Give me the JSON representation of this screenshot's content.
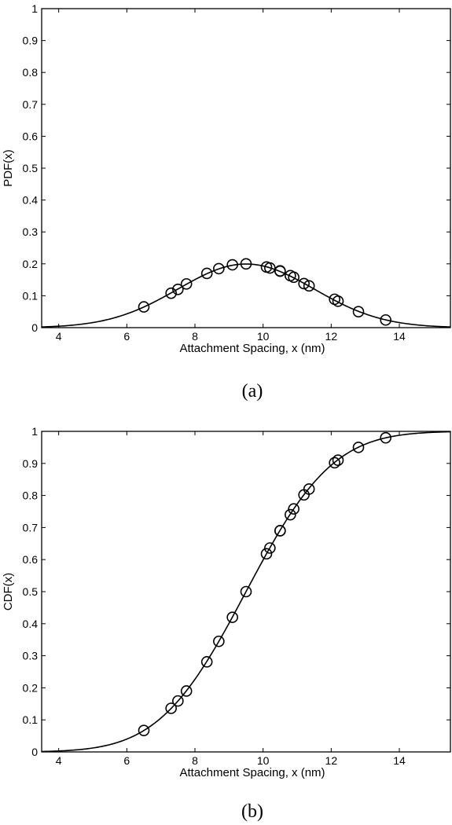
{
  "chart_data": [
    {
      "type": "line",
      "panel_label": "(a)",
      "xlabel": "Attachment Spacing, x (nm)",
      "ylabel": "PDF(x)",
      "xlim": [
        3.5,
        15.5
      ],
      "ylim": [
        0,
        1
      ],
      "xticks": [
        4,
        6,
        8,
        10,
        12,
        14
      ],
      "yticks": [
        0,
        0.1,
        0.2,
        0.3,
        0.4,
        0.5,
        0.6,
        0.7,
        0.8,
        0.9,
        1
      ],
      "ytick_labels": [
        "0",
        "0.1",
        "0.2",
        "0.3",
        "0.4",
        "0.5",
        "0.6",
        "0.7",
        "0.8",
        "0.9",
        "1"
      ],
      "grid": false,
      "legend": "none",
      "series": [
        {
          "style": "solid-line",
          "distribution": "normal",
          "mean": 9.5,
          "std": 2.0
        },
        {
          "style": "open-circle-markers",
          "points": [
            [
              6.5,
              0.065
            ],
            [
              7.3,
              0.108
            ],
            [
              7.5,
              0.12
            ],
            [
              7.75,
              0.137
            ],
            [
              8.35,
              0.17
            ],
            [
              8.7,
              0.185
            ],
            [
              9.1,
              0.197
            ],
            [
              9.5,
              0.2
            ],
            [
              10.1,
              0.19
            ],
            [
              10.2,
              0.187
            ],
            [
              10.5,
              0.178
            ],
            [
              10.5,
              0.177
            ],
            [
              10.8,
              0.163
            ],
            [
              10.9,
              0.158
            ],
            [
              11.2,
              0.138
            ],
            [
              11.35,
              0.131
            ],
            [
              12.1,
              0.089
            ],
            [
              12.2,
              0.083
            ],
            [
              12.8,
              0.05
            ],
            [
              13.6,
              0.024
            ]
          ]
        }
      ]
    },
    {
      "type": "line",
      "panel_label": "(b)",
      "xlabel": "Attachment Spacing, x (nm)",
      "ylabel": "CDF(x)",
      "xlim": [
        3.5,
        15.5
      ],
      "ylim": [
        0,
        1
      ],
      "xticks": [
        4,
        6,
        8,
        10,
        12,
        14
      ],
      "yticks": [
        0,
        0.1,
        0.2,
        0.3,
        0.4,
        0.5,
        0.6,
        0.7,
        0.8,
        0.9,
        1
      ],
      "ytick_labels": [
        "0",
        "0.1",
        "0.2",
        "0.3",
        "0.4",
        "0.5",
        "0.6",
        "0.7",
        "0.8",
        "0.9",
        "1"
      ],
      "grid": false,
      "legend": "none",
      "series": [
        {
          "style": "solid-line",
          "distribution": "normal-cdf",
          "mean": 9.5,
          "std": 2.0
        },
        {
          "style": "open-circle-markers",
          "points": [
            [
              6.5,
              0.067
            ],
            [
              7.3,
              0.136
            ],
            [
              7.5,
              0.159
            ],
            [
              7.75,
              0.19
            ],
            [
              8.35,
              0.281
            ],
            [
              8.7,
              0.345
            ],
            [
              9.1,
              0.42
            ],
            [
              9.5,
              0.5
            ],
            [
              10.1,
              0.618
            ],
            [
              10.2,
              0.636
            ],
            [
              10.5,
              0.69
            ],
            [
              10.5,
              0.69
            ],
            [
              10.8,
              0.74
            ],
            [
              10.9,
              0.758
            ],
            [
              11.2,
              0.802
            ],
            [
              11.35,
              0.82
            ],
            [
              12.1,
              0.902
            ],
            [
              12.2,
              0.91
            ],
            [
              12.8,
              0.95
            ],
            [
              13.6,
              0.98
            ]
          ]
        }
      ]
    }
  ]
}
